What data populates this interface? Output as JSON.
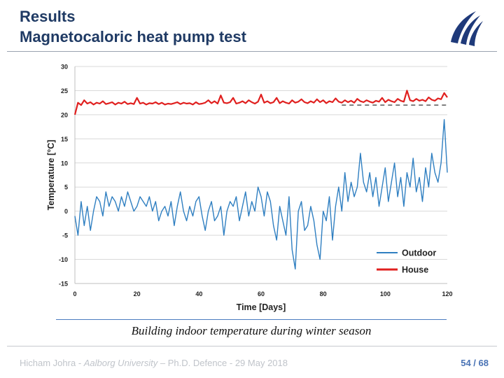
{
  "slide": {
    "title_line1": "Results",
    "title_line2": "Magnetocaloric heat pump test",
    "caption": "Building indoor temperature during winter season",
    "footer": {
      "author": "Hicham Johra",
      "sep1": " - ",
      "university": "Aalborg University",
      "sep2": " – ",
      "event": "Ph.D. Defence - 29 May 2018"
    },
    "page": {
      "current": "54",
      "separator": " / ",
      "total": "68"
    }
  },
  "chart_data": {
    "type": "line",
    "xlabel": "Time [Days]",
    "ylabel": "Temperature [°C]",
    "xlim": [
      0,
      120
    ],
    "ylim": [
      -15,
      30
    ],
    "x_ticks": [
      0,
      20,
      40,
      60,
      80,
      100,
      120
    ],
    "y_ticks": [
      -15,
      -10,
      -5,
      0,
      5,
      10,
      15,
      20,
      25,
      30
    ],
    "grid": "horizontal",
    "legend_position": "bottom-right",
    "reference_line": {
      "y": 22,
      "style": "dashed",
      "color": "#333333"
    },
    "series": [
      {
        "name": "Outdoor",
        "color": "#2f7fc1",
        "x": [
          0,
          1,
          2,
          3,
          4,
          5,
          6,
          7,
          8,
          9,
          10,
          11,
          12,
          13,
          14,
          15,
          16,
          17,
          18,
          19,
          20,
          21,
          22,
          23,
          24,
          25,
          26,
          27,
          28,
          29,
          30,
          31,
          32,
          33,
          34,
          35,
          36,
          37,
          38,
          39,
          40,
          41,
          42,
          43,
          44,
          45,
          46,
          47,
          48,
          49,
          50,
          51,
          52,
          53,
          54,
          55,
          56,
          57,
          58,
          59,
          60,
          61,
          62,
          63,
          64,
          65,
          66,
          67,
          68,
          69,
          70,
          71,
          72,
          73,
          74,
          75,
          76,
          77,
          78,
          79,
          80,
          81,
          82,
          83,
          84,
          85,
          86,
          87,
          88,
          89,
          90,
          91,
          92,
          93,
          94,
          95,
          96,
          97,
          98,
          99,
          100,
          101,
          102,
          103,
          104,
          105,
          106,
          107,
          108,
          109,
          110,
          111,
          112,
          113,
          114,
          115,
          116,
          117,
          118,
          119,
          120
        ],
        "values": [
          -1,
          -5,
          2,
          -3,
          1,
          -4,
          0,
          3,
          2,
          -1,
          4,
          1,
          3,
          2,
          0,
          3,
          1,
          4,
          2,
          0,
          1,
          3,
          2,
          1,
          3,
          0,
          2,
          -2,
          0,
          1,
          -1,
          2,
          -3,
          1,
          4,
          0,
          -2,
          1,
          -1,
          2,
          3,
          -1,
          -4,
          0,
          2,
          -2,
          -1,
          1,
          -5,
          0,
          2,
          1,
          3,
          -2,
          1,
          4,
          -1,
          2,
          0,
          5,
          3,
          -1,
          4,
          2,
          -3,
          -6,
          1,
          -2,
          -5,
          3,
          -8,
          -12,
          0,
          2,
          -4,
          -3,
          1,
          -2,
          -7,
          -10,
          0,
          -2,
          3,
          -6,
          1,
          5,
          0,
          8,
          2,
          6,
          3,
          5,
          12,
          6,
          4,
          8,
          3,
          7,
          1,
          5,
          9,
          2,
          6,
          10,
          3,
          7,
          1,
          8,
          5,
          11,
          4,
          7,
          2,
          9,
          5,
          12,
          8,
          6,
          10,
          19,
          8
        ]
      },
      {
        "name": "House",
        "color": "#e0201f",
        "x": [
          0,
          1,
          2,
          3,
          4,
          5,
          6,
          7,
          8,
          9,
          10,
          11,
          12,
          13,
          14,
          15,
          16,
          17,
          18,
          19,
          20,
          21,
          22,
          23,
          24,
          25,
          26,
          27,
          28,
          29,
          30,
          31,
          32,
          33,
          34,
          35,
          36,
          37,
          38,
          39,
          40,
          41,
          42,
          43,
          44,
          45,
          46,
          47,
          48,
          49,
          50,
          51,
          52,
          53,
          54,
          55,
          56,
          57,
          58,
          59,
          60,
          61,
          62,
          63,
          64,
          65,
          66,
          67,
          68,
          69,
          70,
          71,
          72,
          73,
          74,
          75,
          76,
          77,
          78,
          79,
          80,
          81,
          82,
          83,
          84,
          85,
          86,
          87,
          88,
          89,
          90,
          91,
          92,
          93,
          94,
          95,
          96,
          97,
          98,
          99,
          100,
          101,
          102,
          103,
          104,
          105,
          106,
          107,
          108,
          109,
          110,
          111,
          112,
          113,
          114,
          115,
          116,
          117,
          118,
          119,
          120
        ],
        "values": [
          20,
          22.5,
          22,
          23,
          22.3,
          22.6,
          22.1,
          22.5,
          22.3,
          22.8,
          22.2,
          22.4,
          22.6,
          22.1,
          22.5,
          22.3,
          22.7,
          22.2,
          22.4,
          22.2,
          23.5,
          22.3,
          22.5,
          22.1,
          22.4,
          22.3,
          22.6,
          22.2,
          22.5,
          22.1,
          22.3,
          22.2,
          22.4,
          22.6,
          22.2,
          22.5,
          22.3,
          22.4,
          22.1,
          22.6,
          22.2,
          22.3,
          22.5,
          23,
          22.4,
          22.8,
          22.3,
          24,
          22.5,
          22.4,
          22.6,
          23.5,
          22.3,
          22.5,
          22.8,
          22.4,
          23,
          22.6,
          22.3,
          22.7,
          24.2,
          22.5,
          22.8,
          22.4,
          22.6,
          23.5,
          22.4,
          22.8,
          22.5,
          22.3,
          23,
          22.5,
          22.7,
          23.2,
          22.6,
          22.4,
          22.8,
          22.5,
          23.2,
          22.6,
          23,
          22.4,
          22.8,
          22.6,
          23.4,
          22.7,
          22.5,
          23,
          22.6,
          22.9,
          22.5,
          23.3,
          22.8,
          22.6,
          23,
          22.7,
          22.5,
          22.9,
          22.7,
          23.5,
          22.6,
          23.1,
          22.8,
          22.6,
          23.3,
          22.9,
          22.7,
          25,
          23,
          22.8,
          23.3,
          22.9,
          23.1,
          22.8,
          23.6,
          23.1,
          22.9,
          23.4,
          23.2,
          24.5,
          23.6
        ]
      }
    ]
  }
}
